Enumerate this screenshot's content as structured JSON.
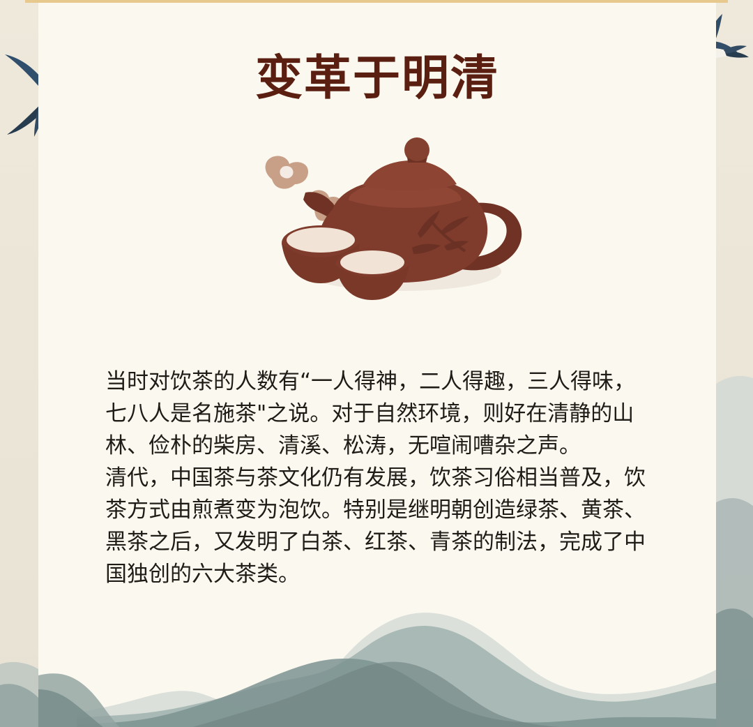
{
  "page": {
    "title": "变革于明清",
    "body_text": "当时对饮茶的人数有“一人得神，二人得趣，三人得味，\n七八人是名施茶\"之说。对于自然环境，则好在清静的山\n林、俭朴的柴房、清溪、松涛，无喧闹嘈杂之声。\n清代，中国茶与茶文化仍有发展，饮茶习俗相当普及，饮\n茶方式由煎煮变为泡饮。特别是继明朝创造绿茶、黄茶、\n黑茶之后，又发明了白茶、红茶、青茶的制法，完成了中\n国独创的六大茶类。"
  },
  "colors": {
    "panel_bg": "#fbf9ef",
    "background": "#ece6d8",
    "title": "#5a1f11",
    "text": "#1f1c18",
    "teapot": "#7f3b2b",
    "teapot_dark": "#5d281d",
    "tea_liquid": "#f1e3d5",
    "steam": "#c89f87",
    "mountain": "#8ea1a0",
    "swallow_blue": "#2f4f6d",
    "top_line": "#e7c98d"
  },
  "icons": {
    "teapot": "teapot-icon",
    "teacup": "teacup-icon",
    "steam": "steam-icon",
    "swallow": "swallow-icon",
    "mountain": "mountain-icon"
  }
}
